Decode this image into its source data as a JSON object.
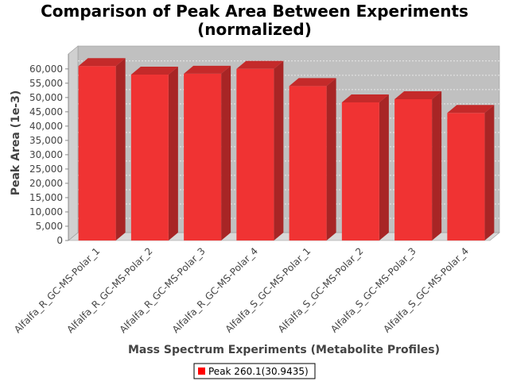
{
  "chart_data": {
    "type": "bar",
    "title_lines": [
      "Comparison of Peak Area Between Experiments",
      "(normalized)"
    ],
    "xlabel": "Mass Spectrum Experiments (Metabolite Profiles)",
    "ylabel": "Peak Area (1e-3)",
    "categories": [
      "Alfalfa_R_GC-MS-Polar_1",
      "Alfalfa_R_GC-MS-Polar_2",
      "Alfalfa_R_GC-MS-Polar_3",
      "Alfalfa_R_GC-MS-Polar_4",
      "Alfalfa_S_GC-MS-Polar_1",
      "Alfalfa_S_GC-MS-Polar_2",
      "Alfalfa_S_GC-MS-Polar_3",
      "Alfalfa_S_GC-MS-Polar_4"
    ],
    "series": [
      {
        "name": "Peak 260.1(30.9435)",
        "values": [
          61000,
          58000,
          58300,
          60000,
          54000,
          48300,
          49400,
          44600
        ]
      }
    ],
    "ylim": [
      0,
      63000
    ],
    "yticks": [
      0,
      5000,
      10000,
      15000,
      20000,
      25000,
      30000,
      35000,
      40000,
      45000,
      50000,
      55000,
      60000
    ],
    "ytick_labels": [
      "0",
      "5,000",
      "10,000",
      "15,000",
      "20,000",
      "25,000",
      "30,000",
      "35,000",
      "40,000",
      "45,000",
      "50,000",
      "55,000",
      "60,000"
    ],
    "grid": true,
    "legend_position": "bottom-center",
    "colors": {
      "bar_front": "#f03333",
      "bar_top": "#c42a2a",
      "bar_side": "#a82525",
      "plot_back": "#c0c0c0",
      "plot_floor": "#d8d8d8",
      "grid": "#e8e8e8",
      "legend_swatch": "#ff0000"
    }
  }
}
